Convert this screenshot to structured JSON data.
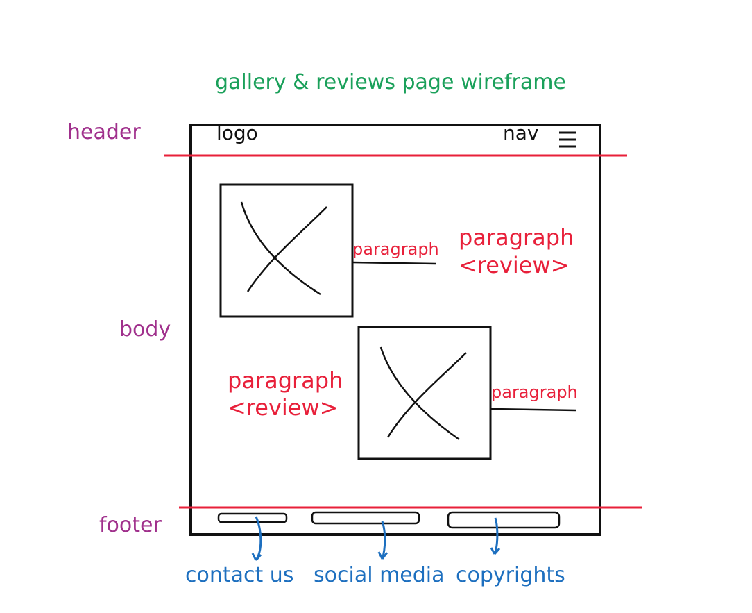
{
  "colors": {
    "title_green": "#1aa05a",
    "label_purple": "#a0308c",
    "annotation_red": "#e8203a",
    "footer_blue": "#1d6fbf",
    "ink": "#111111"
  },
  "title": "gallery & reviews page wireframe",
  "section_labels": {
    "header": "header",
    "body": "body",
    "footer": "footer"
  },
  "wireframe": {
    "logo": "logo",
    "nav": "nav",
    "nav_icon": "hamburger-menu-icon",
    "image_icon": "image-placeholder-x-icon"
  },
  "annotations": {
    "img1_paragraph": "paragraph",
    "review1_paragraph": "paragraph",
    "review1_tag": "<review>",
    "review2_paragraph": "paragraph",
    "review2_tag": "<review>",
    "img2_paragraph": "paragraph"
  },
  "footer_items": [
    "contact us",
    "social media",
    "copyrights"
  ]
}
